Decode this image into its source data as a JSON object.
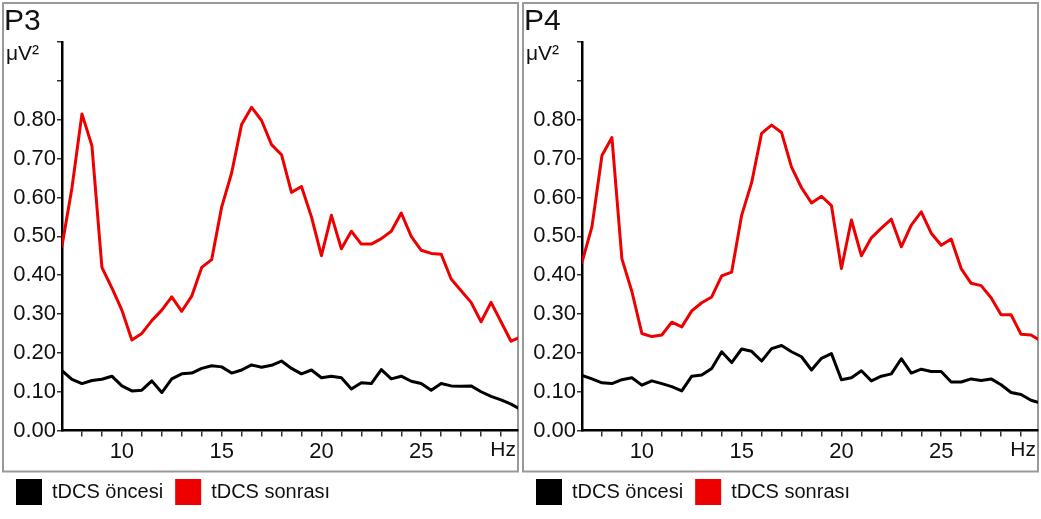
{
  "chart_data": [
    {
      "type": "line",
      "title": "P3",
      "ylabel": "μV²",
      "xlabel": "Hz",
      "legend": "bottom",
      "marker": "none",
      "line_style": "solid",
      "x": [
        7,
        7.5,
        8,
        8.5,
        9,
        9.5,
        10,
        10.5,
        11,
        11.5,
        12,
        12.5,
        13,
        13.5,
        14,
        14.5,
        15,
        15.5,
        16,
        16.5,
        17,
        17.5,
        18,
        18.5,
        19,
        19.5,
        20,
        20.5,
        21,
        21.5,
        22,
        22.5,
        23,
        23.5,
        24,
        24.5,
        25,
        25.5,
        26,
        26.5,
        27,
        27.5,
        28,
        28.5,
        29,
        29.5,
        29.85
      ],
      "xlim": [
        7,
        29.85
      ],
      "xticks": [
        {
          "value": 8,
          "label": null
        },
        {
          "value": 9,
          "label": null
        },
        10,
        {
          "value": 11,
          "label": null
        },
        {
          "value": 12,
          "label": null
        },
        {
          "value": 13,
          "label": null
        },
        {
          "value": 14,
          "label": null
        },
        15,
        {
          "value": 16,
          "label": null
        },
        {
          "value": 17,
          "label": null
        },
        {
          "value": 18,
          "label": null
        },
        {
          "value": 19,
          "label": null
        },
        20,
        {
          "value": 21,
          "label": null
        },
        {
          "value": 22,
          "label": null
        },
        {
          "value": 23,
          "label": null
        },
        {
          "value": 24,
          "label": null
        },
        25,
        {
          "value": 26,
          "label": null
        },
        {
          "value": 27,
          "label": null
        },
        {
          "value": 28,
          "label": null
        },
        {
          "value": 29,
          "label": null
        }
      ],
      "ylim": [
        0,
        1
      ],
      "yticks": [
        {
          "value": 0,
          "label": "0.00"
        },
        {
          "value": 0.1,
          "label": "0.10"
        },
        {
          "value": 0.2,
          "label": "0.20"
        },
        {
          "value": 0.3,
          "label": "0.30"
        },
        {
          "value": 0.4,
          "label": "0.40"
        },
        {
          "value": 0.5,
          "label": "0.50"
        },
        {
          "value": 0.6,
          "label": "0.60"
        },
        {
          "value": 0.7,
          "label": "0.70"
        },
        {
          "value": 0.8,
          "label": "0.80"
        },
        {
          "value": 0.9,
          "label": null
        },
        {
          "value": 1,
          "label": null
        }
      ],
      "series": [
        {
          "name": "tDCS öncesi",
          "color": "#000000",
          "values": [
            0.154,
            0.132,
            0.121,
            0.129,
            0.132,
            0.14,
            0.115,
            0.102,
            0.104,
            0.128,
            0.098,
            0.133,
            0.146,
            0.148,
            0.16,
            0.167,
            0.164,
            0.148,
            0.156,
            0.169,
            0.163,
            0.168,
            0.179,
            0.16,
            0.146,
            0.156,
            0.136,
            0.14,
            0.136,
            0.107,
            0.123,
            0.121,
            0.157,
            0.133,
            0.14,
            0.127,
            0.121,
            0.104,
            0.121,
            0.115,
            0.114,
            0.115,
            0.1,
            0.088,
            0.079,
            0.068,
            0.058
          ]
        },
        {
          "name": "tDCS sonrası",
          "color": "#ee0000",
          "values": [
            0.475,
            0.625,
            0.815,
            0.733,
            0.42,
            0.367,
            0.31,
            0.233,
            0.25,
            0.283,
            0.31,
            0.344,
            0.307,
            0.346,
            0.42,
            0.44,
            0.575,
            0.663,
            0.788,
            0.832,
            0.798,
            0.736,
            0.71,
            0.613,
            0.628,
            0.55,
            0.45,
            0.554,
            0.468,
            0.513,
            0.48,
            0.48,
            0.494,
            0.513,
            0.56,
            0.5,
            0.464,
            0.456,
            0.454,
            0.39,
            0.36,
            0.33,
            0.28,
            0.33,
            0.28,
            0.23,
            0.238
          ]
        }
      ]
    },
    {
      "type": "line",
      "title": "P4",
      "ylabel": "μV²",
      "xlabel": "Hz",
      "legend": "bottom",
      "marker": "none",
      "line_style": "solid",
      "x": [
        7,
        7.5,
        8,
        8.5,
        9,
        9.5,
        10,
        10.5,
        11,
        11.5,
        12,
        12.5,
        13,
        13.5,
        14,
        14.5,
        15,
        15.5,
        16,
        16.5,
        17,
        17.5,
        18,
        18.5,
        19,
        19.5,
        20,
        20.5,
        21,
        21.5,
        22,
        22.5,
        23,
        23.5,
        24,
        24.5,
        25,
        25.5,
        26,
        26.5,
        27,
        27.5,
        28,
        28.5,
        29,
        29.5,
        29.85
      ],
      "xlim": [
        7,
        29.85
      ],
      "xticks": [
        {
          "value": 8,
          "label": null
        },
        {
          "value": 9,
          "label": null
        },
        10,
        {
          "value": 11,
          "label": null
        },
        {
          "value": 12,
          "label": null
        },
        {
          "value": 13,
          "label": null
        },
        {
          "value": 14,
          "label": null
        },
        15,
        {
          "value": 16,
          "label": null
        },
        {
          "value": 17,
          "label": null
        },
        {
          "value": 18,
          "label": null
        },
        {
          "value": 19,
          "label": null
        },
        20,
        {
          "value": 21,
          "label": null
        },
        {
          "value": 22,
          "label": null
        },
        {
          "value": 23,
          "label": null
        },
        {
          "value": 24,
          "label": null
        },
        25,
        {
          "value": 26,
          "label": null
        },
        {
          "value": 27,
          "label": null
        },
        {
          "value": 28,
          "label": null
        },
        {
          "value": 29,
          "label": null
        }
      ],
      "ylim": [
        0,
        1
      ],
      "yticks": [
        {
          "value": 0,
          "label": "0.00"
        },
        {
          "value": 0.1,
          "label": "0.10"
        },
        {
          "value": 0.2,
          "label": "0.20"
        },
        {
          "value": 0.3,
          "label": "0.30"
        },
        {
          "value": 0.4,
          "label": "0.40"
        },
        {
          "value": 0.5,
          "label": "0.50"
        },
        {
          "value": 0.6,
          "label": "0.60"
        },
        {
          "value": 0.7,
          "label": "0.70"
        },
        {
          "value": 0.8,
          "label": "0.80"
        },
        {
          "value": 0.9,
          "label": null
        },
        {
          "value": 1,
          "label": null
        }
      ],
      "series": [
        {
          "name": "tDCS öncesi",
          "color": "#000000",
          "values": [
            0.142,
            0.133,
            0.123,
            0.121,
            0.131,
            0.136,
            0.117,
            0.128,
            0.121,
            0.113,
            0.102,
            0.14,
            0.143,
            0.16,
            0.203,
            0.175,
            0.21,
            0.204,
            0.179,
            0.211,
            0.219,
            0.203,
            0.19,
            0.156,
            0.186,
            0.198,
            0.131,
            0.136,
            0.154,
            0.128,
            0.14,
            0.146,
            0.185,
            0.148,
            0.158,
            0.152,
            0.152,
            0.125,
            0.125,
            0.133,
            0.129,
            0.133,
            0.118,
            0.098,
            0.093,
            0.078,
            0.073
          ]
        },
        {
          "name": "tDCS sonrası",
          "color": "#ee0000",
          "values": [
            0.433,
            0.525,
            0.708,
            0.754,
            0.442,
            0.358,
            0.25,
            0.242,
            0.246,
            0.279,
            0.267,
            0.308,
            0.329,
            0.344,
            0.398,
            0.408,
            0.554,
            0.638,
            0.765,
            0.786,
            0.767,
            0.678,
            0.625,
            0.586,
            0.603,
            0.579,
            0.417,
            0.542,
            0.45,
            0.496,
            0.521,
            0.544,
            0.473,
            0.529,
            0.563,
            0.508,
            0.477,
            0.493,
            0.417,
            0.379,
            0.373,
            0.342,
            0.298,
            0.298,
            0.248,
            0.246,
            0.235
          ]
        }
      ]
    }
  ]
}
